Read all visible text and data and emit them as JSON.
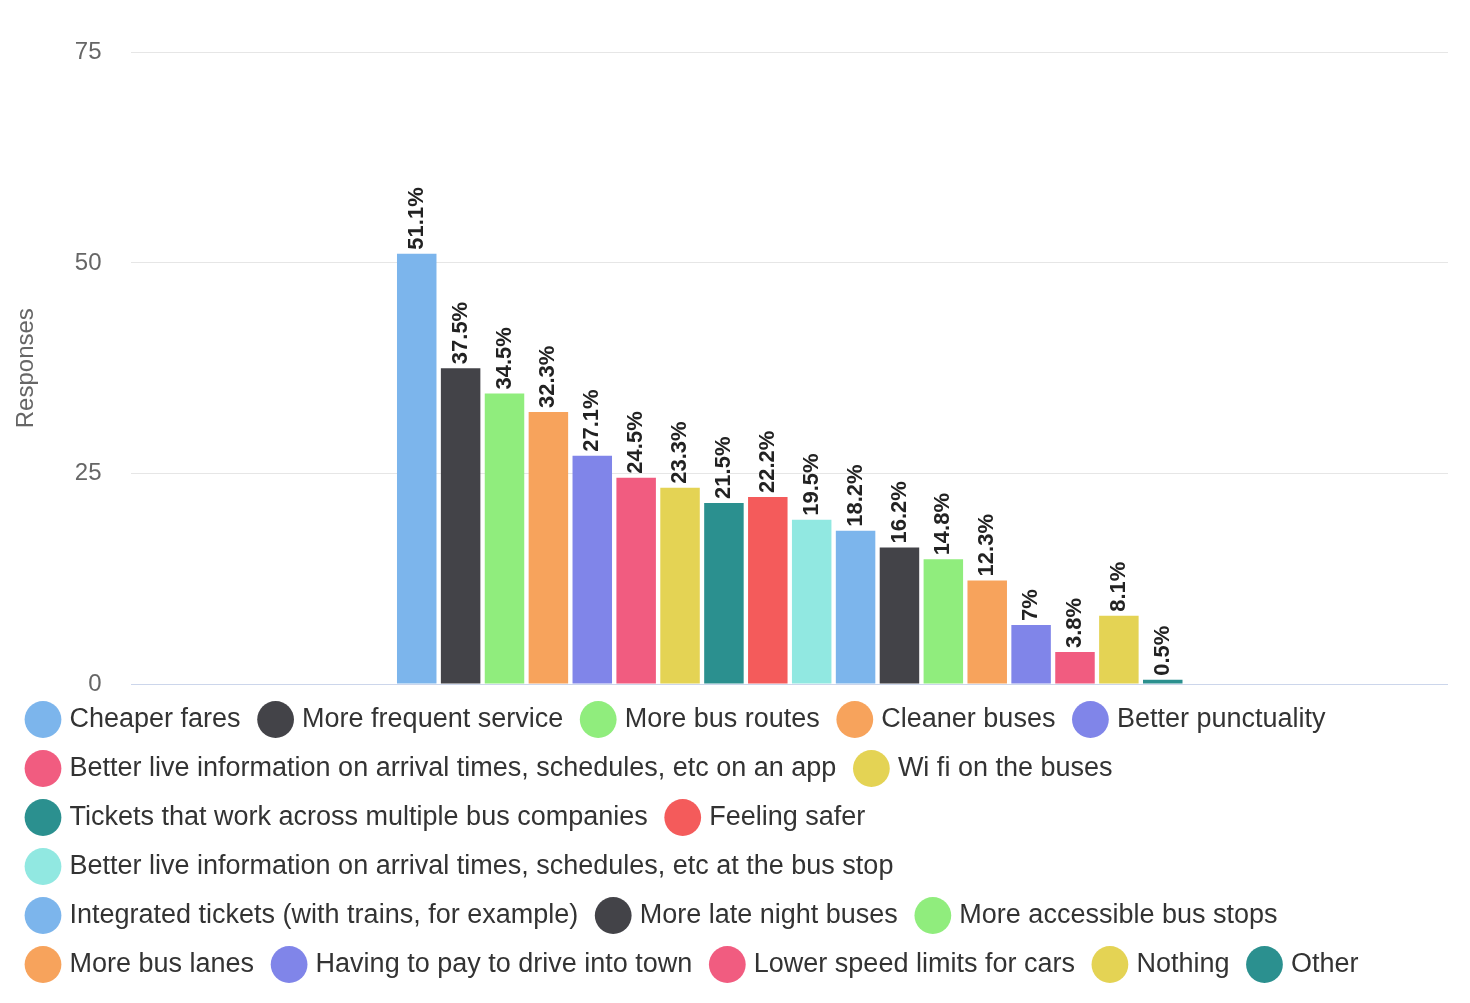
{
  "chart_data": {
    "type": "bar",
    "ylabel": "Responses",
    "categories": [
      null
    ],
    "ylim": [
      0,
      75
    ],
    "yticks": [
      0,
      25,
      50,
      75
    ],
    "grid": "y",
    "legend": "bottom",
    "series": [
      {
        "name": "Cheaper fares",
        "color": "#7cb5ec",
        "values": [
          51.1
        ],
        "value_labels": [
          "51.1%"
        ]
      },
      {
        "name": "More frequent service",
        "color": "#434348",
        "values": [
          37.5
        ],
        "value_labels": [
          "37.5%"
        ]
      },
      {
        "name": "More bus routes",
        "color": "#90ed7d",
        "values": [
          34.5
        ],
        "value_labels": [
          "34.5%"
        ]
      },
      {
        "name": "Cleaner buses",
        "color": "#f7a35c",
        "values": [
          32.3
        ],
        "value_labels": [
          "32.3%"
        ]
      },
      {
        "name": "Better punctuality",
        "color": "#8085e9",
        "values": [
          27.1
        ],
        "value_labels": [
          "27.1%"
        ]
      },
      {
        "name": "Better live information on arrival times, schedules, etc on an app",
        "color": "#f15c80",
        "values": [
          24.5
        ],
        "value_labels": [
          "24.5%"
        ]
      },
      {
        "name": "Wi fi on the buses",
        "color": "#e4d354",
        "values": [
          23.3
        ],
        "value_labels": [
          "23.3%"
        ]
      },
      {
        "name": "Tickets that work across multiple bus companies",
        "color": "#2b908f",
        "values": [
          21.5
        ],
        "value_labels": [
          "21.5%"
        ]
      },
      {
        "name": "Feeling safer",
        "color": "#f45b5b",
        "values": [
          22.2
        ],
        "value_labels": [
          "22.2%"
        ]
      },
      {
        "name": "Better live information on arrival times, schedules, etc at the bus stop",
        "color": "#91e8e1",
        "values": [
          19.5
        ],
        "value_labels": [
          "19.5%"
        ]
      },
      {
        "name": "Integrated tickets (with trains, for example)",
        "color": "#7cb5ec",
        "values": [
          18.2
        ],
        "value_labels": [
          "18.2%"
        ]
      },
      {
        "name": "More late night buses",
        "color": "#434348",
        "values": [
          16.2
        ],
        "value_labels": [
          "16.2%"
        ]
      },
      {
        "name": "More accessible bus stops",
        "color": "#90ed7d",
        "values": [
          14.8
        ],
        "value_labels": [
          "14.8%"
        ]
      },
      {
        "name": "More bus lanes",
        "color": "#f7a35c",
        "values": [
          12.3
        ],
        "value_labels": [
          "12.3%"
        ]
      },
      {
        "name": "Having to pay to drive into town",
        "color": "#8085e9",
        "values": [
          7
        ],
        "value_labels": [
          "7%"
        ]
      },
      {
        "name": "Lower speed limits for cars",
        "color": "#f15c80",
        "values": [
          3.8
        ],
        "value_labels": [
          "3.8%"
        ]
      },
      {
        "name": "Nothing",
        "color": "#e4d354",
        "values": [
          8.1
        ],
        "value_labels": [
          "8.1%"
        ]
      },
      {
        "name": "Other",
        "color": "#2b908f",
        "values": [
          0.5
        ],
        "value_labels": [
          "0.5%"
        ]
      }
    ]
  }
}
